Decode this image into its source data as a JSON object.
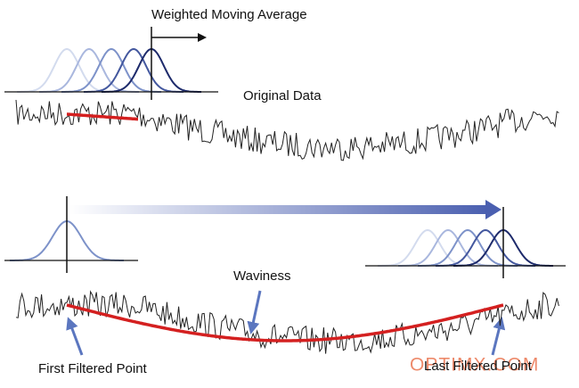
{
  "labels": {
    "weighted_moving_average": "Weighted Moving Average",
    "original_data": "Original Data",
    "waviness": "Waviness",
    "first_filtered_point": "First Filtered Point",
    "last_filtered_point": "Last Filtered Point",
    "watermark": "OPTIMX.COM"
  }
}
